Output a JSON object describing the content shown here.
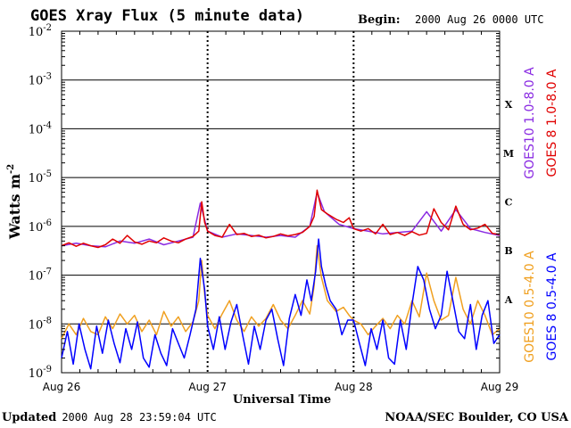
{
  "chart_data": {
    "type": "line",
    "title": "GOES Xray Flux (5 minute data)",
    "begin_label": "Begin:",
    "begin_value": "2000 Aug 26 0000 UTC",
    "xlabel": "Universal Time",
    "ylabel": "Watts m",
    "ylabel_exp": "-2",
    "y_scale": "log",
    "ylim": [
      1e-09,
      0.01
    ],
    "y_ticks": [
      {
        "base": "10",
        "exp": "-9"
      },
      {
        "base": "10",
        "exp": "-8"
      },
      {
        "base": "10",
        "exp": "-7"
      },
      {
        "base": "10",
        "exp": "-6"
      },
      {
        "base": "10",
        "exp": "-5"
      },
      {
        "base": "10",
        "exp": "-4"
      },
      {
        "base": "10",
        "exp": "-3"
      },
      {
        "base": "10",
        "exp": "-2"
      }
    ],
    "x_ticks": [
      "Aug 26",
      "Aug 27",
      "Aug 28",
      "Aug 29"
    ],
    "xlim_days": [
      0,
      3
    ],
    "flare_classes": [
      {
        "label": "A",
        "log_value": -7.5
      },
      {
        "label": "B",
        "log_value": -6.5
      },
      {
        "label": "C",
        "log_value": -5.5
      },
      {
        "label": "M",
        "log_value": -4.5
      },
      {
        "label": "X",
        "log_value": -3.5
      }
    ],
    "grid": "horizontal at each decade, dotted vertical at day boundaries",
    "series": [
      {
        "name": "GOES10 1.0-8.0 A",
        "color": "#8a2be2",
        "x_days": [
          0,
          0.1,
          0.2,
          0.3,
          0.4,
          0.5,
          0.6,
          0.7,
          0.8,
          0.9,
          0.95,
          1.0,
          1.1,
          1.2,
          1.3,
          1.4,
          1.5,
          1.6,
          1.7,
          1.75,
          1.8,
          1.9,
          2.0,
          2.1,
          2.2,
          2.3,
          2.4,
          2.5,
          2.6,
          2.7,
          2.8,
          2.9,
          3.0
        ],
        "values": [
          4e-07,
          4.5e-07,
          4e-07,
          3.8e-07,
          5e-07,
          4.5e-07,
          5.5e-07,
          4.2e-07,
          5e-07,
          6e-07,
          3e-06,
          8e-07,
          6e-07,
          7e-07,
          6.5e-07,
          6e-07,
          6.5e-07,
          6e-07,
          1e-06,
          5e-06,
          2e-06,
          1.1e-06,
          9e-07,
          8e-07,
          7e-07,
          7.5e-07,
          8e-07,
          2e-06,
          8e-07,
          2.2e-06,
          9e-07,
          7.5e-07,
          6.5e-07
        ]
      },
      {
        "name": "GOES 8 1.0-8.0 A",
        "color": "#e00000",
        "x_days": [
          0,
          0.05,
          0.1,
          0.15,
          0.2,
          0.25,
          0.3,
          0.35,
          0.4,
          0.45,
          0.5,
          0.55,
          0.6,
          0.65,
          0.7,
          0.75,
          0.8,
          0.85,
          0.9,
          0.94,
          0.96,
          0.98,
          1.0,
          1.05,
          1.1,
          1.15,
          1.2,
          1.25,
          1.3,
          1.35,
          1.4,
          1.45,
          1.5,
          1.55,
          1.6,
          1.65,
          1.7,
          1.73,
          1.75,
          1.78,
          1.82,
          1.88,
          1.93,
          1.97,
          2.0,
          2.05,
          2.1,
          2.15,
          2.2,
          2.25,
          2.3,
          2.35,
          2.4,
          2.45,
          2.5,
          2.55,
          2.6,
          2.65,
          2.7,
          2.75,
          2.8,
          2.85,
          2.9,
          2.95,
          3.0
        ],
        "values": [
          4e-07,
          4.6e-07,
          3.9e-07,
          4.5e-07,
          4e-07,
          3.7e-07,
          4.2e-07,
          5.5e-07,
          4.5e-07,
          6.5e-07,
          4.8e-07,
          4.3e-07,
          5e-07,
          4.6e-07,
          5.8e-07,
          5e-07,
          4.6e-07,
          5.5e-07,
          6.2e-07,
          8e-07,
          3.2e-06,
          1.2e-06,
          8e-07,
          6.5e-07,
          6e-07,
          1.1e-06,
          6.8e-07,
          7.2e-07,
          6.2e-07,
          6.6e-07,
          5.8e-07,
          6.2e-07,
          7e-07,
          6.4e-07,
          6.8e-07,
          7.5e-07,
          1e-06,
          1.6e-06,
          5.5e-06,
          2.2e-06,
          1.8e-06,
          1.4e-06,
          1.2e-06,
          1.5e-06,
          9e-07,
          8e-07,
          9e-07,
          7e-07,
          1.1e-06,
          6.8e-07,
          7.5e-07,
          6.5e-07,
          7.8e-07,
          6.6e-07,
          7.2e-07,
          2.3e-06,
          1.2e-06,
          8.5e-07,
          2.6e-06,
          1.1e-06,
          8.5e-07,
          9.2e-07,
          1.1e-06,
          7.2e-07,
          6.8e-07
        ]
      },
      {
        "name": "GOES10 0.5-4.0 A",
        "color": "#f0a020",
        "x_days": [
          0,
          0.05,
          0.1,
          0.15,
          0.2,
          0.25,
          0.3,
          0.35,
          0.4,
          0.45,
          0.5,
          0.55,
          0.6,
          0.65,
          0.7,
          0.75,
          0.8,
          0.85,
          0.9,
          0.94,
          0.96,
          0.98,
          1.0,
          1.05,
          1.1,
          1.15,
          1.2,
          1.25,
          1.3,
          1.35,
          1.4,
          1.45,
          1.5,
          1.55,
          1.6,
          1.65,
          1.7,
          1.73,
          1.75,
          1.78,
          1.82,
          1.88,
          1.93,
          1.97,
          2.0,
          2.05,
          2.1,
          2.15,
          2.2,
          2.25,
          2.3,
          2.35,
          2.4,
          2.45,
          2.5,
          2.55,
          2.6,
          2.65,
          2.7,
          2.75,
          2.8,
          2.85,
          2.9,
          2.95,
          3.0
        ],
        "values": [
          5e-09,
          1e-08,
          6e-09,
          1.3e-08,
          7e-09,
          6e-09,
          1.4e-08,
          8e-09,
          1.6e-08,
          1e-08,
          1.5e-08,
          7e-09,
          1.2e-08,
          6e-09,
          1.8e-08,
          9e-09,
          1.4e-08,
          7e-09,
          1.1e-08,
          3e-08,
          2e-07,
          4e-08,
          1.5e-08,
          8e-09,
          1.6e-08,
          3e-08,
          1.2e-08,
          7e-09,
          1.4e-08,
          9e-09,
          1.3e-08,
          2.5e-08,
          1.2e-08,
          8e-09,
          1.5e-08,
          3e-08,
          1.6e-08,
          6e-08,
          4e-07,
          9e-08,
          3e-08,
          1.8e-08,
          2.2e-08,
          1.5e-08,
          1.2e-08,
          1e-08,
          6e-09,
          9e-09,
          1.3e-08,
          8e-09,
          1.5e-08,
          1e-08,
          3e-08,
          1.4e-08,
          1.1e-07,
          3e-08,
          1.2e-08,
          1.5e-08,
          9e-08,
          2e-08,
          1e-08,
          3e-08,
          1.5e-08,
          6e-09,
          8e-09
        ]
      },
      {
        "name": "GOES 8 0.5-4.0 A",
        "color": "#0000ff",
        "x_days": [
          0,
          0.04,
          0.08,
          0.12,
          0.16,
          0.2,
          0.24,
          0.28,
          0.32,
          0.36,
          0.4,
          0.44,
          0.48,
          0.52,
          0.56,
          0.6,
          0.64,
          0.68,
          0.72,
          0.76,
          0.8,
          0.84,
          0.88,
          0.92,
          0.95,
          0.98,
          1.0,
          1.04,
          1.08,
          1.12,
          1.16,
          1.2,
          1.24,
          1.28,
          1.32,
          1.36,
          1.4,
          1.44,
          1.48,
          1.52,
          1.56,
          1.6,
          1.64,
          1.68,
          1.71,
          1.74,
          1.76,
          1.78,
          1.81,
          1.84,
          1.88,
          1.92,
          1.96,
          2.0,
          2.04,
          2.08,
          2.12,
          2.16,
          2.2,
          2.24,
          2.28,
          2.32,
          2.36,
          2.4,
          2.44,
          2.48,
          2.52,
          2.56,
          2.6,
          2.64,
          2.68,
          2.72,
          2.76,
          2.8,
          2.84,
          2.88,
          2.92,
          2.96,
          3.0
        ],
        "values": [
          2e-09,
          7e-09,
          1.5e-09,
          1e-08,
          3e-09,
          1.2e-09,
          9e-09,
          2.5e-09,
          1.2e-08,
          4e-09,
          1.6e-09,
          8e-09,
          3e-09,
          1.1e-08,
          2e-09,
          1.3e-09,
          6e-09,
          2.5e-09,
          1.4e-09,
          8e-09,
          4e-09,
          2e-09,
          6e-09,
          2e-08,
          2.2e-07,
          5e-08,
          9e-09,
          3e-09,
          1.4e-08,
          3e-09,
          1.1e-08,
          2.5e-08,
          6e-09,
          1.5e-09,
          9e-09,
          3e-09,
          1.2e-08,
          2e-08,
          5e-09,
          1.4e-09,
          1.3e-08,
          4e-08,
          1.5e-08,
          8e-08,
          3e-08,
          1.2e-07,
          5.5e-07,
          1.5e-07,
          6e-08,
          3e-08,
          2e-08,
          6e-09,
          1.2e-08,
          1.2e-08,
          4e-09,
          1.4e-09,
          8e-09,
          3e-09,
          1.2e-08,
          2e-09,
          1.5e-09,
          1.2e-08,
          3e-09,
          2.5e-08,
          1.5e-07,
          8e-08,
          2e-08,
          8e-09,
          1.5e-08,
          1.2e-07,
          3e-08,
          7e-09,
          5e-09,
          2.5e-08,
          3e-09,
          1.5e-08,
          3e-08,
          4e-09,
          6e-09
        ]
      }
    ]
  },
  "footer": {
    "updated_label": "Updated",
    "updated_value": "2000 Aug 28 23:59:04 UTC",
    "source": "NOAA/SEC Boulder, CO USA"
  }
}
